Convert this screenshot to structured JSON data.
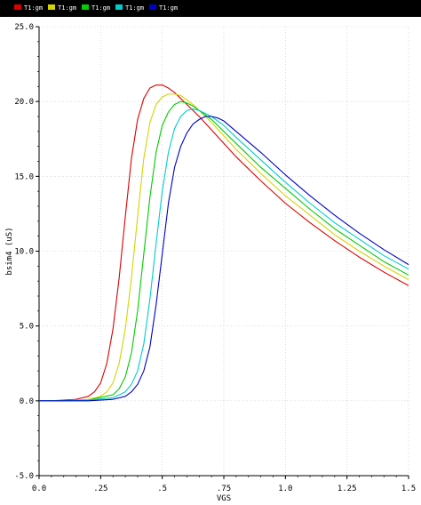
{
  "chart_data": {
    "type": "line",
    "title": "",
    "xlabel": "VGS",
    "ylabel": "bsim4 (uS)",
    "xlim": [
      0,
      1.5
    ],
    "ylim": [
      -5,
      25
    ],
    "x_ticks": [
      0,
      0.25,
      0.5,
      0.75,
      1.0,
      1.25,
      1.5
    ],
    "x_tick_labels": [
      "0.0",
      ".25",
      ".5",
      ".75",
      "1.0",
      "1.25",
      "1.5"
    ],
    "y_ticks": [
      -5,
      0,
      5,
      10,
      15,
      20,
      25
    ],
    "y_tick_labels": [
      "-5.0",
      "0.0",
      "5.0",
      "10.0",
      "15.0",
      "20.0",
      "25.0"
    ],
    "grid": true,
    "legend_position": "top-left",
    "background": "#ffffff",
    "header_color": "#000000",
    "series": [
      {
        "name": "T1:gm",
        "color": "#dd0000",
        "x": [
          0.0,
          0.05,
          0.1,
          0.15,
          0.2,
          0.225,
          0.25,
          0.275,
          0.3,
          0.325,
          0.35,
          0.375,
          0.4,
          0.425,
          0.45,
          0.475,
          0.5,
          0.525,
          0.55,
          0.575,
          0.6,
          0.65,
          0.7,
          0.75,
          0.8,
          0.9,
          1.0,
          1.1,
          1.2,
          1.3,
          1.4,
          1.5
        ],
        "y": [
          0.0,
          0.0,
          0.05,
          0.1,
          0.3,
          0.6,
          1.2,
          2.5,
          4.8,
          8.2,
          12.3,
          16.2,
          18.8,
          20.2,
          20.9,
          21.1,
          21.1,
          20.9,
          20.6,
          20.2,
          19.8,
          19.0,
          18.1,
          17.2,
          16.3,
          14.7,
          13.2,
          11.9,
          10.7,
          9.6,
          8.6,
          7.7
        ]
      },
      {
        "name": "T1:gm",
        "color": "#d4d400",
        "x": [
          0.0,
          0.1,
          0.2,
          0.25,
          0.275,
          0.3,
          0.325,
          0.35,
          0.375,
          0.4,
          0.425,
          0.45,
          0.475,
          0.5,
          0.525,
          0.55,
          0.575,
          0.6,
          0.625,
          0.65,
          0.7,
          0.75,
          0.8,
          0.9,
          1.0,
          1.1,
          1.2,
          1.3,
          1.4,
          1.5
        ],
        "y": [
          0.0,
          0.0,
          0.1,
          0.3,
          0.6,
          1.2,
          2.5,
          4.8,
          8.2,
          12.3,
          16.2,
          18.6,
          19.8,
          20.3,
          20.5,
          20.5,
          20.4,
          20.1,
          19.8,
          19.4,
          18.6,
          17.7,
          16.8,
          15.2,
          13.7,
          12.4,
          11.1,
          10.0,
          9.0,
          8.1
        ]
      },
      {
        "name": "T1:gm",
        "color": "#00cc00",
        "x": [
          0.0,
          0.1,
          0.2,
          0.3,
          0.325,
          0.35,
          0.375,
          0.4,
          0.425,
          0.45,
          0.475,
          0.5,
          0.525,
          0.55,
          0.575,
          0.6,
          0.625,
          0.65,
          0.7,
          0.75,
          0.8,
          0.9,
          1.0,
          1.1,
          1.2,
          1.3,
          1.4,
          1.5
        ],
        "y": [
          0.0,
          0.0,
          0.05,
          0.4,
          0.8,
          1.6,
          3.2,
          6.0,
          9.8,
          13.6,
          16.6,
          18.4,
          19.3,
          19.8,
          20.0,
          19.9,
          19.7,
          19.4,
          18.8,
          18.0,
          17.2,
          15.6,
          14.2,
          12.8,
          11.5,
          10.4,
          9.3,
          8.4
        ]
      },
      {
        "name": "T1:gm",
        "color": "#00cccc",
        "x": [
          0.0,
          0.1,
          0.2,
          0.3,
          0.35,
          0.375,
          0.4,
          0.425,
          0.45,
          0.475,
          0.5,
          0.525,
          0.55,
          0.575,
          0.6,
          0.625,
          0.65,
          0.675,
          0.7,
          0.75,
          0.8,
          0.9,
          1.0,
          1.1,
          1.2,
          1.3,
          1.4,
          1.5
        ],
        "y": [
          0.0,
          0.0,
          0.05,
          0.2,
          0.6,
          1.1,
          2.0,
          3.8,
          6.8,
          10.5,
          14.0,
          16.6,
          18.2,
          19.0,
          19.4,
          19.5,
          19.4,
          19.2,
          19.0,
          18.4,
          17.6,
          16.1,
          14.6,
          13.2,
          11.9,
          10.8,
          9.7,
          8.8
        ]
      },
      {
        "name": "T1:gm",
        "color": "#0000cc",
        "x": [
          0.0,
          0.1,
          0.2,
          0.3,
          0.35,
          0.375,
          0.4,
          0.425,
          0.45,
          0.475,
          0.5,
          0.525,
          0.55,
          0.575,
          0.6,
          0.625,
          0.65,
          0.675,
          0.7,
          0.725,
          0.75,
          0.8,
          0.9,
          1.0,
          1.1,
          1.2,
          1.3,
          1.4,
          1.5
        ],
        "y": [
          0.0,
          0.0,
          0.0,
          0.1,
          0.3,
          0.6,
          1.1,
          2.0,
          3.6,
          6.4,
          9.8,
          13.2,
          15.6,
          17.0,
          17.9,
          18.5,
          18.8,
          19.0,
          19.0,
          18.9,
          18.7,
          18.0,
          16.6,
          15.1,
          13.7,
          12.4,
          11.2,
          10.1,
          9.1
        ]
      }
    ]
  }
}
